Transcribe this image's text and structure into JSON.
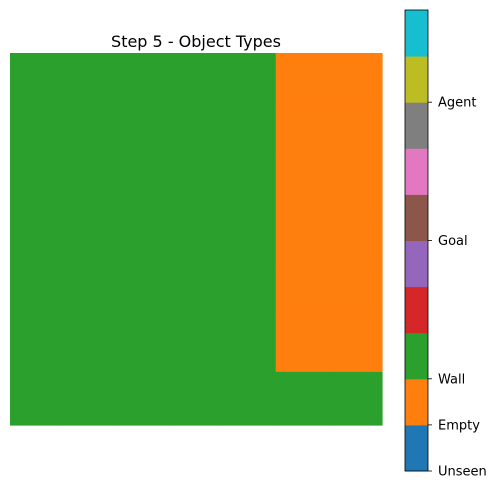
{
  "chart_data": {
    "type": "heatmap",
    "title": "Step 5 - Object Types",
    "grid": {
      "rows": 7,
      "cols": 7,
      "cells": [
        [
          "Wall",
          "Wall",
          "Wall",
          "Wall",
          "Wall",
          "Empty",
          "Empty"
        ],
        [
          "Wall",
          "Wall",
          "Wall",
          "Wall",
          "Wall",
          "Empty",
          "Empty"
        ],
        [
          "Wall",
          "Wall",
          "Wall",
          "Wall",
          "Wall",
          "Empty",
          "Empty"
        ],
        [
          "Wall",
          "Wall",
          "Wall",
          "Wall",
          "Wall",
          "Empty",
          "Empty"
        ],
        [
          "Wall",
          "Wall",
          "Wall",
          "Wall",
          "Wall",
          "Empty",
          "Empty"
        ],
        [
          "Wall",
          "Wall",
          "Wall",
          "Wall",
          "Wall",
          "Empty",
          "Empty"
        ],
        [
          "Wall",
          "Wall",
          "Wall",
          "Wall",
          "Wall",
          "Wall",
          "Wall"
        ]
      ]
    },
    "axes_visible": false,
    "colormap": {
      "range": [
        0,
        10
      ],
      "colors": [
        "#1f77b4",
        "#ff7f0e",
        "#2ca02c",
        "#d62728",
        "#9467bd",
        "#8c564b",
        "#e377c2",
        "#7f7f7f",
        "#bcbd22",
        "#17becf"
      ]
    },
    "colorbar_ticks": [
      {
        "value": 0,
        "label": "Unseen"
      },
      {
        "value": 1,
        "label": "Empty"
      },
      {
        "value": 2,
        "label": "Wall"
      },
      {
        "value": 5,
        "label": "Goal"
      },
      {
        "value": 8,
        "label": "Agent"
      }
    ],
    "category_values": {
      "Unseen": 0,
      "Empty": 1,
      "Wall": 2,
      "Goal": 5,
      "Agent": 8
    }
  }
}
